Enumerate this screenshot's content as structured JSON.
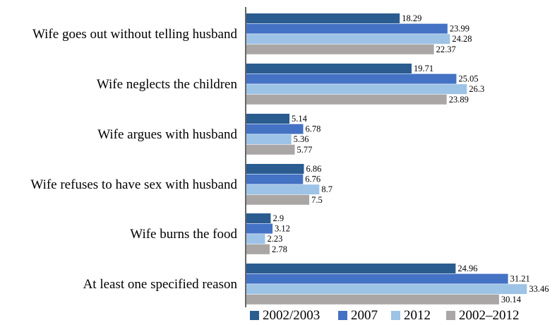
{
  "chart_data": {
    "type": "bar",
    "orientation": "horizontal",
    "categories": [
      "Wife goes out without telling husband",
      "Wife neglects the children",
      "Wife argues with husband",
      "Wife refuses to have sex with husband",
      "Wife burns the food",
      "At least one specified reason"
    ],
    "series": [
      {
        "name": "2002/2003",
        "color": "#2a5c8f",
        "values": [
          18.29,
          19.71,
          5.14,
          6.86,
          2.9,
          24.96
        ]
      },
      {
        "name": "2007",
        "color": "#4472c4",
        "values": [
          23.99,
          25.05,
          6.78,
          6.76,
          3.12,
          31.21
        ]
      },
      {
        "name": "2012",
        "color": "#9dc3e6",
        "values": [
          24.28,
          26.3,
          5.36,
          8.7,
          2.23,
          33.46
        ]
      },
      {
        "name": "2002–2012",
        "color": "#aaa6a6",
        "values": [
          22.37,
          23.89,
          5.77,
          7.5,
          2.78,
          30.14
        ]
      }
    ],
    "value_labels": [
      [
        "18.29",
        "19.71",
        "5.14",
        "6.86",
        "2.9",
        "24.96"
      ],
      [
        "23.99",
        "25.05",
        "6.78",
        "6.76",
        "3.12",
        "31.21"
      ],
      [
        "24.28",
        "26.3",
        "5.36",
        "8.7",
        "2.23",
        "33.46"
      ],
      [
        "22.37",
        "23.89",
        "5.77",
        "7.5",
        "2.78",
        "30.14"
      ]
    ],
    "title": "",
    "xlabel": "",
    "ylabel": "",
    "xlim": [
      0,
      35
    ],
    "grid": false,
    "legend_position": "bottom"
  }
}
